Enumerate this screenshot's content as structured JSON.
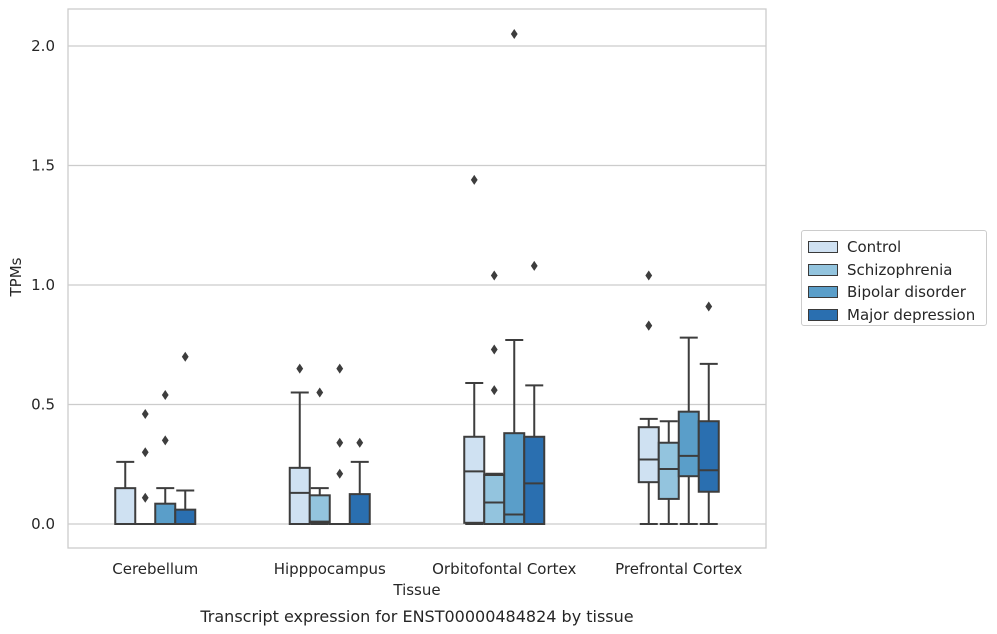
{
  "chart_data": {
    "type": "box",
    "ylabel": "TPMs",
    "xlabel": "Tissue",
    "caption": "Transcript expression for ENST00000484824 by tissue",
    "ylim": [
      -0.1,
      2.15
    ],
    "yticks": [
      "0.0",
      "0.5",
      "1.0",
      "1.5",
      "2.0"
    ],
    "ytick_values": [
      0.0,
      0.5,
      1.0,
      1.5,
      2.0
    ],
    "grid": "horizontal",
    "legend_position": "right",
    "categories": [
      "Cerebellum",
      "Hipppocampus",
      "Orbitofontal Cortex",
      "Prefrontal Cortex"
    ],
    "series": [
      {
        "name": "Control",
        "color": "#cfe1f2",
        "boxes": [
          {
            "lower_whisker": 0.0,
            "q1": 0.0,
            "median": 0.0,
            "q3": 0.15,
            "upper_whisker": 0.26,
            "outliers": []
          },
          {
            "lower_whisker": 0.0,
            "q1": 0.0,
            "median": 0.13,
            "q3": 0.235,
            "upper_whisker": 0.55,
            "outliers": [
              0.65
            ]
          },
          {
            "lower_whisker": 0.0,
            "q1": 0.005,
            "median": 0.22,
            "q3": 0.365,
            "upper_whisker": 0.59,
            "outliers": [
              1.44
            ]
          },
          {
            "lower_whisker": 0.0,
            "q1": 0.175,
            "median": 0.27,
            "q3": 0.405,
            "upper_whisker": 0.44,
            "outliers": [
              0.83,
              0.83,
              1.04
            ]
          }
        ]
      },
      {
        "name": "Schizophrenia",
        "color": "#93c4de",
        "boxes": [
          {
            "lower_whisker": 0.0,
            "q1": 0.0,
            "median": 0.0,
            "q3": 0.0,
            "upper_whisker": 0.0,
            "outliers": [
              0.11,
              0.3,
              0.46
            ]
          },
          {
            "lower_whisker": 0.0,
            "q1": 0.005,
            "median": 0.01,
            "q3": 0.12,
            "upper_whisker": 0.15,
            "outliers": [
              0.55
            ]
          },
          {
            "lower_whisker": 0.0,
            "q1": 0.0,
            "median": 0.09,
            "q3": 0.205,
            "upper_whisker": 0.21,
            "outliers": [
              0.56,
              0.73,
              1.04
            ]
          },
          {
            "lower_whisker": 0.0,
            "q1": 0.105,
            "median": 0.23,
            "q3": 0.34,
            "upper_whisker": 0.43,
            "outliers": []
          }
        ]
      },
      {
        "name": "Bipolar disorder",
        "color": "#5a9ec9",
        "boxes": [
          {
            "lower_whisker": 0.0,
            "q1": 0.0,
            "median": 0.0,
            "q3": 0.085,
            "upper_whisker": 0.15,
            "outliers": [
              0.35,
              0.54
            ]
          },
          {
            "lower_whisker": 0.0,
            "q1": 0.0,
            "median": 0.0,
            "q3": 0.0,
            "upper_whisker": 0.0,
            "outliers": [
              0.21,
              0.34,
              0.65
            ]
          },
          {
            "lower_whisker": 0.0,
            "q1": 0.0,
            "median": 0.04,
            "q3": 0.38,
            "upper_whisker": 0.77,
            "outliers": [
              2.05
            ]
          },
          {
            "lower_whisker": 0.0,
            "q1": 0.2,
            "median": 0.285,
            "q3": 0.47,
            "upper_whisker": 0.78,
            "outliers": []
          }
        ]
      },
      {
        "name": "Major depression",
        "color": "#2a6fb0",
        "boxes": [
          {
            "lower_whisker": 0.0,
            "q1": 0.0,
            "median": 0.0,
            "q3": 0.06,
            "upper_whisker": 0.14,
            "outliers": [
              0.7
            ]
          },
          {
            "lower_whisker": 0.0,
            "q1": 0.0,
            "median": 0.0,
            "q3": 0.125,
            "upper_whisker": 0.26,
            "outliers": [
              0.34
            ]
          },
          {
            "lower_whisker": 0.0,
            "q1": 0.0,
            "median": 0.17,
            "q3": 0.365,
            "upper_whisker": 0.58,
            "outliers": [
              1.08
            ]
          },
          {
            "lower_whisker": 0.0,
            "q1": 0.135,
            "median": 0.225,
            "q3": 0.43,
            "upper_whisker": 0.67,
            "outliers": [
              0.91
            ]
          }
        ]
      }
    ]
  }
}
